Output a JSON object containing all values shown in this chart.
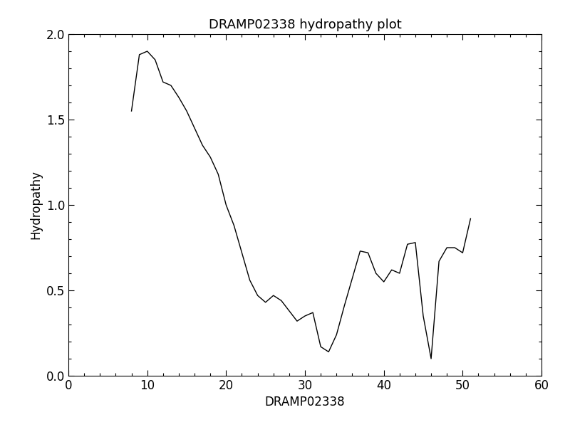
{
  "title": "DRAMP02338 hydropathy plot",
  "xlabel": "DRAMP02338",
  "ylabel": "Hydropathy",
  "xlim": [
    0,
    60
  ],
  "ylim": [
    0,
    2.0
  ],
  "xticks": [
    0,
    10,
    20,
    30,
    40,
    50,
    60
  ],
  "yticks": [
    0.0,
    0.5,
    1.0,
    1.5,
    2.0
  ],
  "line_color": "#000000",
  "line_width": 1.0,
  "background_color": "#ffffff",
  "title_fontsize": 13,
  "label_fontsize": 12,
  "tick_fontsize": 12,
  "x": [
    8,
    9,
    10,
    11,
    12,
    13,
    14,
    15,
    16,
    17,
    18,
    19,
    20,
    21,
    22,
    23,
    24,
    25,
    26,
    27,
    28,
    29,
    30,
    31,
    32,
    33,
    34,
    35,
    36,
    37,
    38,
    39,
    40,
    41,
    42,
    43,
    44,
    45,
    46,
    47,
    48,
    49,
    50,
    51
  ],
  "y": [
    1.55,
    1.88,
    1.9,
    1.85,
    1.72,
    1.7,
    1.63,
    1.55,
    1.45,
    1.35,
    1.28,
    1.18,
    1.0,
    0.88,
    0.72,
    0.56,
    0.47,
    0.43,
    0.47,
    0.44,
    0.38,
    0.32,
    0.35,
    0.37,
    0.17,
    0.14,
    0.24,
    0.41,
    0.57,
    0.73,
    0.72,
    0.6,
    0.55,
    0.62,
    0.6,
    0.77,
    0.78,
    0.35,
    0.1,
    0.67,
    0.75,
    0.75,
    0.72,
    0.92
  ]
}
